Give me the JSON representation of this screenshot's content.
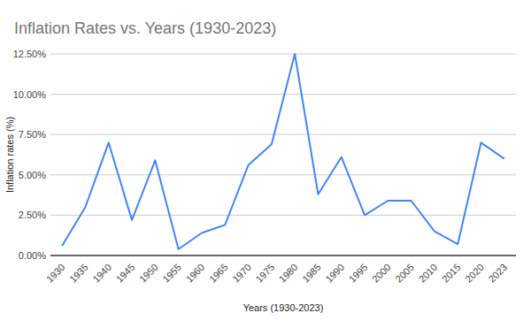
{
  "chart_data": {
    "type": "line",
    "title": "Inflation Rates vs. Years (1930-2023)",
    "x_label": "Years (1930-2023)",
    "y_label": "Inflation rates (%)",
    "categories": [
      "1930",
      "1935",
      "1940",
      "1945",
      "1950",
      "1955",
      "1960",
      "1965",
      "1970",
      "1975",
      "1980",
      "1985",
      "1990",
      "1995",
      "2000",
      "2005",
      "2010",
      "2015",
      "2020",
      "2023"
    ],
    "values": [
      0.6,
      3.0,
      7.0,
      2.2,
      5.9,
      0.4,
      1.4,
      1.9,
      5.6,
      6.9,
      12.5,
      3.8,
      6.1,
      2.5,
      3.4,
      3.4,
      1.5,
      0.7,
      7.0,
      6.0
    ],
    "color": "#4285f4",
    "ylim": [
      0,
      12.5
    ],
    "yticks": [
      {
        "value": 0,
        "label": "0.00%"
      },
      {
        "value": 2.5,
        "label": "2.50%"
      },
      {
        "value": 5,
        "label": "5.00%"
      },
      {
        "value": 7.5,
        "label": "7.50%"
      },
      {
        "value": 10,
        "label": "10.00%"
      },
      {
        "value": 12.5,
        "label": "12.50%"
      }
    ],
    "grid": true
  }
}
